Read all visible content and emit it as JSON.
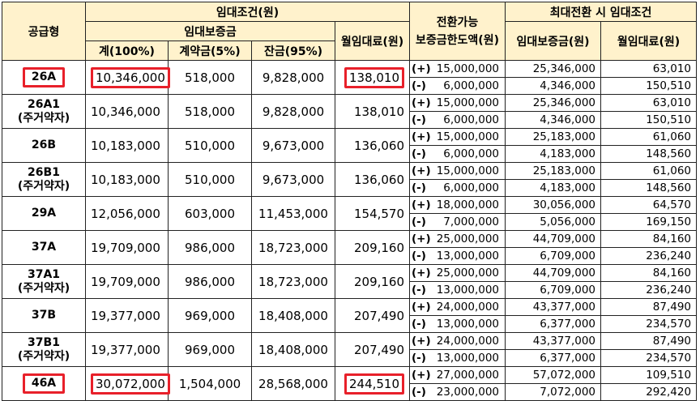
{
  "headers": {
    "type": "공급형",
    "rent_conditions": "임대조건(원)",
    "deposit_group": "임대보증금",
    "total": "계(100%)",
    "contract": "계약금(5%)",
    "balance": "잔금(95%)",
    "monthly_rent": "월임대료(원)",
    "convertible_line1": "전환가능",
    "convertible_line2": "보증금한도액(원)",
    "max_conversion": "최대전환 시 임대조건",
    "max_deposit": "임대보증금(원)",
    "max_monthly": "월임대료(원)"
  },
  "rows": [
    {
      "type": "26A",
      "type_sub": "",
      "total": "10,346,000",
      "contract": "518,000",
      "balance": "9,828,000",
      "monthly": "138,010",
      "plus": {
        "sign": "(+)",
        "amount": "15,000,000",
        "deposit": "25,346,000",
        "monthly": "63,010"
      },
      "minus": {
        "sign": "(-)",
        "amount": "6,000,000",
        "deposit": "4,346,000",
        "monthly": "150,510"
      }
    },
    {
      "type": "26A1",
      "type_sub": "(주거약자)",
      "total": "10,346,000",
      "contract": "518,000",
      "balance": "9,828,000",
      "monthly": "138,010",
      "plus": {
        "sign": "(+)",
        "amount": "15,000,000",
        "deposit": "25,346,000",
        "monthly": "63,010"
      },
      "minus": {
        "sign": "(-)",
        "amount": "6,000,000",
        "deposit": "4,346,000",
        "monthly": "150,510"
      }
    },
    {
      "type": "26B",
      "type_sub": "",
      "total": "10,183,000",
      "contract": "510,000",
      "balance": "9,673,000",
      "monthly": "136,060",
      "plus": {
        "sign": "(+)",
        "amount": "15,000,000",
        "deposit": "25,183,000",
        "monthly": "61,060"
      },
      "minus": {
        "sign": "(-)",
        "amount": "6,000,000",
        "deposit": "4,183,000",
        "monthly": "148,560"
      }
    },
    {
      "type": "26B1",
      "type_sub": "(주거약자)",
      "total": "10,183,000",
      "contract": "510,000",
      "balance": "9,673,000",
      "monthly": "136,060",
      "plus": {
        "sign": "(+)",
        "amount": "15,000,000",
        "deposit": "25,183,000",
        "monthly": "61,060"
      },
      "minus": {
        "sign": "(-)",
        "amount": "6,000,000",
        "deposit": "4,183,000",
        "monthly": "148,560"
      }
    },
    {
      "type": "29A",
      "type_sub": "",
      "total": "12,056,000",
      "contract": "603,000",
      "balance": "11,453,000",
      "monthly": "154,570",
      "plus": {
        "sign": "(+)",
        "amount": "18,000,000",
        "deposit": "30,056,000",
        "monthly": "64,570"
      },
      "minus": {
        "sign": "(-)",
        "amount": "7,000,000",
        "deposit": "5,056,000",
        "monthly": "169,150"
      }
    },
    {
      "type": "37A",
      "type_sub": "",
      "total": "19,709,000",
      "contract": "986,000",
      "balance": "18,723,000",
      "monthly": "209,160",
      "plus": {
        "sign": "(+)",
        "amount": "25,000,000",
        "deposit": "44,709,000",
        "monthly": "84,160"
      },
      "minus": {
        "sign": "(-)",
        "amount": "13,000,000",
        "deposit": "6,709,000",
        "monthly": "236,240"
      }
    },
    {
      "type": "37A1",
      "type_sub": "(주거약자)",
      "total": "19,709,000",
      "contract": "986,000",
      "balance": "18,723,000",
      "monthly": "209,160",
      "plus": {
        "sign": "(+)",
        "amount": "25,000,000",
        "deposit": "44,709,000",
        "monthly": "84,160"
      },
      "minus": {
        "sign": "(-)",
        "amount": "13,000,000",
        "deposit": "6,709,000",
        "monthly": "236,240"
      }
    },
    {
      "type": "37B",
      "type_sub": "",
      "total": "19,377,000",
      "contract": "969,000",
      "balance": "18,408,000",
      "monthly": "207,490",
      "plus": {
        "sign": "(+)",
        "amount": "24,000,000",
        "deposit": "43,377,000",
        "monthly": "87,490"
      },
      "minus": {
        "sign": "(-)",
        "amount": "13,000,000",
        "deposit": "6,377,000",
        "monthly": "234,570"
      }
    },
    {
      "type": "37B1",
      "type_sub": "(주거약자)",
      "total": "19,377,000",
      "contract": "969,000",
      "balance": "18,408,000",
      "monthly": "207,490",
      "plus": {
        "sign": "(+)",
        "amount": "24,000,000",
        "deposit": "43,377,000",
        "monthly": "87,490"
      },
      "minus": {
        "sign": "(-)",
        "amount": "13,000,000",
        "deposit": "6,377,000",
        "monthly": "234,570"
      }
    },
    {
      "type": "46A",
      "type_sub": "",
      "total": "30,072,000",
      "contract": "1,504,000",
      "balance": "28,568,000",
      "monthly": "244,510",
      "plus": {
        "sign": "(+)",
        "amount": "27,000,000",
        "deposit": "57,072,000",
        "monthly": "109,510"
      },
      "minus": {
        "sign": "(-)",
        "amount": "23,000,000",
        "deposit": "7,072,000",
        "monthly": "292,420"
      }
    }
  ],
  "highlight_color": "#e8202a",
  "header_bg": "#fff2cc"
}
